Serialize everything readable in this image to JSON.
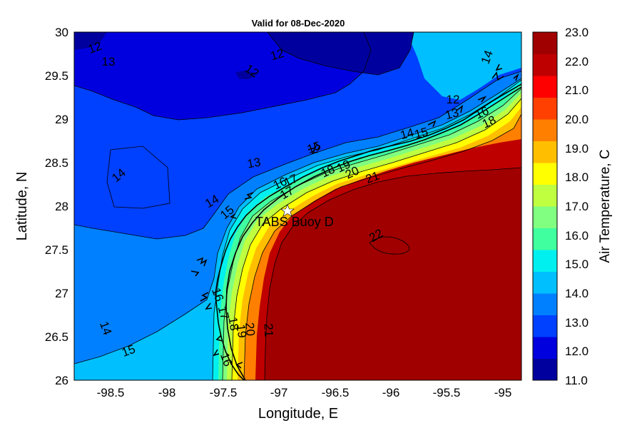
{
  "title": "Valid for 08-Dec-2020",
  "xlabel": "Longitude, E",
  "ylabel": "Latitude, N",
  "colorbar_label": "Air Temperature, C",
  "xticks": [
    "-98.5",
    "-98",
    "-97.5",
    "-97",
    "-96.5",
    "-96",
    "-95.5",
    "-95"
  ],
  "yticks": [
    "30",
    "29.5",
    "29",
    "28.5",
    "28",
    "27.5",
    "27",
    "26.5",
    "26"
  ],
  "colorbar_ticks": [
    "23.0",
    "22.0",
    "21.0",
    "20.0",
    "19.0",
    "18.0",
    "17.0",
    "16.0",
    "15.0",
    "14.0",
    "13.0",
    "12.0",
    "11.0"
  ],
  "colorbar_colors": [
    "#00009F",
    "#0000DF",
    "#0040FF",
    "#0080FF",
    "#00BFFF",
    "#00F0F0",
    "#40FF9F",
    "#80FF80",
    "#BFFF40",
    "#FFFF00",
    "#FFBF00",
    "#FF8000",
    "#FF4000",
    "#FF0000",
    "#BF0000",
    "#A00000"
  ],
  "station": {
    "label": "TABS Buoy D",
    "lon": -96.84,
    "lat": 27.94
  },
  "contour_labels": [
    "12",
    "13",
    "12",
    "12",
    "14",
    "12",
    "13",
    "14",
    "15",
    "16",
    "18",
    "13",
    "14",
    "15",
    "17",
    "16",
    "17",
    "18",
    "19",
    "20",
    "21",
    "22",
    "14",
    "15",
    "15",
    "16",
    "17",
    "18",
    "19",
    "20",
    "21",
    "16",
    "14"
  ],
  "map_data": {
    "type": "filled-contour",
    "variable": "Air Temperature",
    "units": "C",
    "date": "08-Dec-2020",
    "xlim": [
      -98.75,
      -94.75
    ],
    "ylim": [
      26,
      30
    ],
    "clim": [
      11,
      23
    ],
    "contour_interval": 1
  }
}
